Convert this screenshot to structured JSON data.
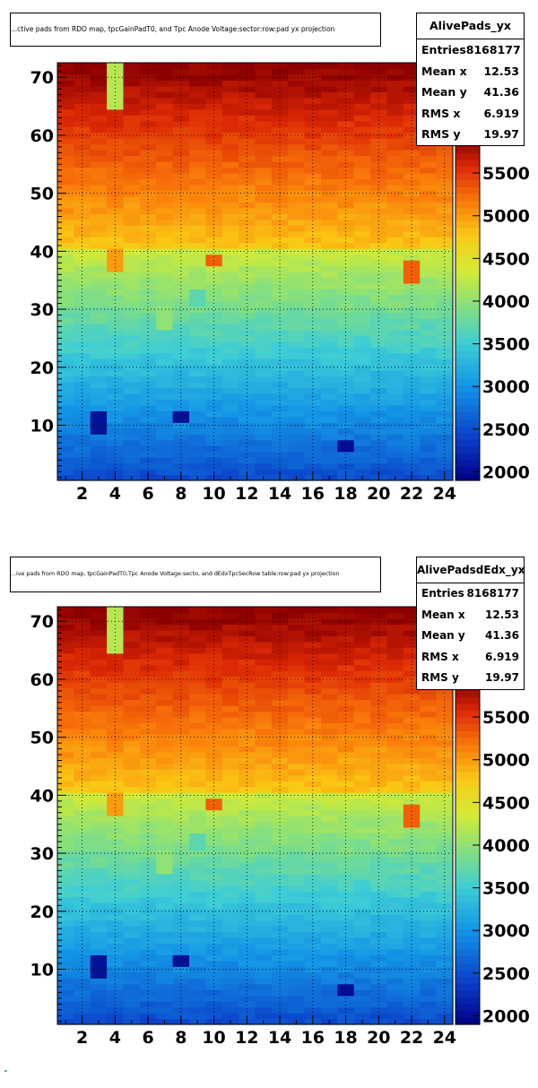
{
  "chart_data": [
    {
      "type": "heatmap",
      "histogram_name": "AlivePads_yx",
      "title": "...ctive pads from RDO map, tpcGainPadT0,  and Tpc Anode Voltage:sector:row:pad yx projection",
      "stats": {
        "entries_label": "Entries",
        "entries": "8168177",
        "mean_x_label": "Mean x",
        "mean_x": "12.53",
        "mean_y_label": "Mean y",
        "mean_y": "41.36",
        "rms_x_label": "RMS x",
        "rms_x": "6.919",
        "rms_y_label": "RMS y",
        "rms_y": "19.97"
      },
      "x_ticks": [
        "2",
        "4",
        "6",
        "8",
        "10",
        "12",
        "14",
        "16",
        "18",
        "20",
        "22",
        "24"
      ],
      "y_ticks": [
        "10",
        "20",
        "30",
        "40",
        "50",
        "60",
        "70"
      ],
      "z_ticks": [
        "2000",
        "2500",
        "3000",
        "3500",
        "4000",
        "4500",
        "5000",
        "5500"
      ],
      "xlim": [
        0.5,
        24.5
      ],
      "ylim": [
        0.5,
        72.5
      ],
      "zlim": [
        1900,
        5900
      ],
      "grid": true,
      "row_profile": {
        "row1": 2500,
        "row40": 4300,
        "row41": 4800,
        "row72": 5900
      },
      "anomalies": [
        {
          "x": 4,
          "y_from": 65,
          "y_to": 72,
          "value": 4200
        },
        {
          "x": 4,
          "y_from": 37,
          "y_to": 40,
          "value": 5000
        },
        {
          "x": 3,
          "y_from": 9,
          "y_to": 12,
          "value": 2050
        },
        {
          "x": 8,
          "y_from": 11,
          "y_to": 12,
          "value": 2050
        },
        {
          "x": 18,
          "y_from": 6,
          "y_to": 7,
          "value": 2000
        },
        {
          "x": 9,
          "y_from": 31,
          "y_to": 33,
          "value": 3700
        },
        {
          "x": 7,
          "y_from": 27,
          "y_to": 30,
          "value": 4000
        },
        {
          "x": 14,
          "y_from": 22,
          "y_to": 24,
          "value": 3500
        },
        {
          "x": 10,
          "y_from": 38,
          "y_to": 39,
          "value": 5300
        },
        {
          "x": 22,
          "y_from": 35,
          "y_to": 38,
          "value": 5300
        }
      ]
    },
    {
      "type": "heatmap",
      "histogram_name": "AlivePadsdEdx_yx",
      "title": "...ive pads from RDO map, tpcGainPadT0,Tpc Anode Voltage:secto, and dEdxTpcSecRow table:row:pad yx projection",
      "stats": {
        "entries_label": "Entries",
        "entries": "8168177",
        "mean_x_label": "Mean x",
        "mean_x": "12.53",
        "mean_y_label": "Mean y",
        "mean_y": "41.36",
        "rms_x_label": "RMS x",
        "rms_x": "6.919",
        "rms_y_label": "RMS y",
        "rms_y": "19.97"
      },
      "x_ticks": [
        "2",
        "4",
        "6",
        "8",
        "10",
        "12",
        "14",
        "16",
        "18",
        "20",
        "22",
        "24"
      ],
      "y_ticks": [
        "10",
        "20",
        "30",
        "40",
        "50",
        "60",
        "70"
      ],
      "z_ticks": [
        "2000",
        "2500",
        "3000",
        "3500",
        "4000",
        "4500",
        "5000",
        "5500"
      ],
      "xlim": [
        0.5,
        24.5
      ],
      "ylim": [
        0.5,
        72.5
      ],
      "zlim": [
        1900,
        5900
      ],
      "grid": true,
      "row_profile": {
        "row1": 2500,
        "row40": 4300,
        "row41": 4800,
        "row72": 5900
      },
      "anomalies": [
        {
          "x": 4,
          "y_from": 65,
          "y_to": 72,
          "value": 4200
        },
        {
          "x": 4,
          "y_from": 37,
          "y_to": 40,
          "value": 5000
        },
        {
          "x": 3,
          "y_from": 9,
          "y_to": 12,
          "value": 2050
        },
        {
          "x": 8,
          "y_from": 11,
          "y_to": 12,
          "value": 2050
        },
        {
          "x": 18,
          "y_from": 6,
          "y_to": 7,
          "value": 2000
        },
        {
          "x": 9,
          "y_from": 31,
          "y_to": 33,
          "value": 3700
        },
        {
          "x": 7,
          "y_from": 27,
          "y_to": 30,
          "value": 4000
        },
        {
          "x": 14,
          "y_from": 22,
          "y_to": 24,
          "value": 3500
        },
        {
          "x": 10,
          "y_from": 38,
          "y_to": 39,
          "value": 5300
        },
        {
          "x": 22,
          "y_from": 35,
          "y_to": 38,
          "value": 5300
        }
      ]
    }
  ]
}
